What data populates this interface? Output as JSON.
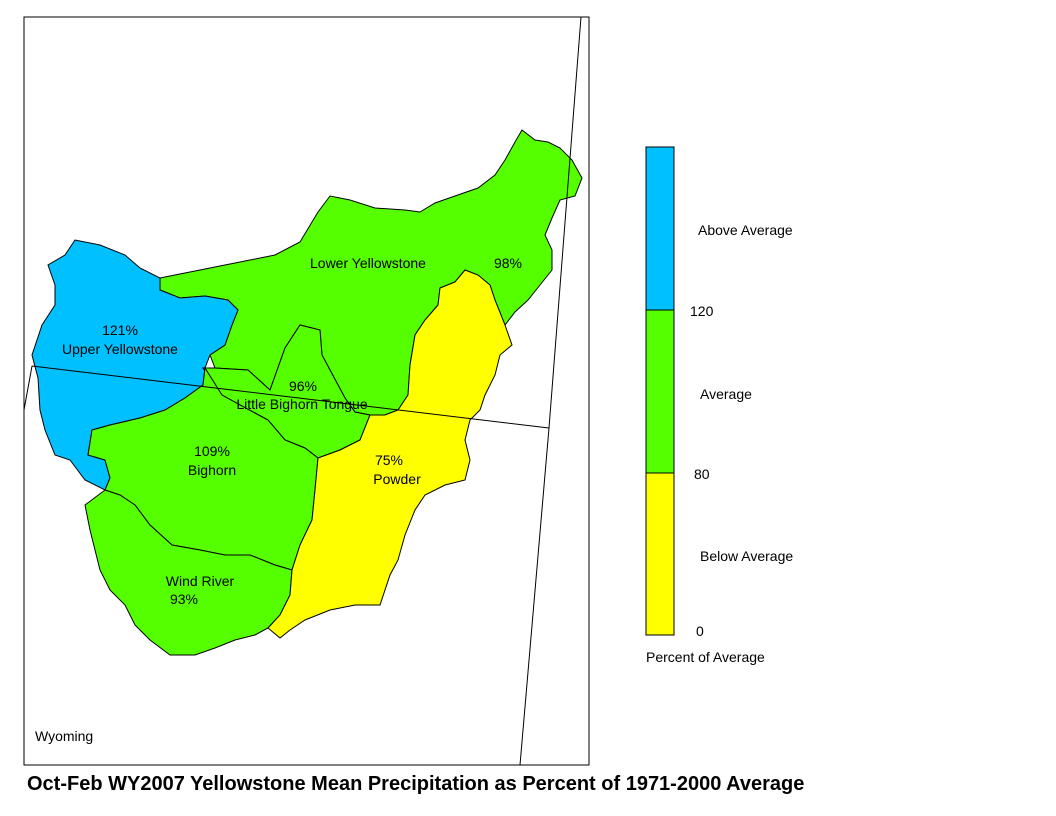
{
  "title": "Oct-Feb WY2007 Yellowstone Mean Precipitation as Percent of 1971-2000 Average",
  "state_label": "Wyoming",
  "colors": {
    "above": "#00c0ff",
    "average": "#55ff00",
    "below": "#ffff00"
  },
  "basins": [
    {
      "name": "Upper Yellowstone",
      "percent": "121%",
      "category": "above"
    },
    {
      "name": "Lower Yellowstone",
      "percent": "98%",
      "category": "average"
    },
    {
      "name": "Little Bighorn Tongue",
      "percent": "96%",
      "category": "average"
    },
    {
      "name": "Bighorn",
      "percent": "109%",
      "category": "average"
    },
    {
      "name": "Wind River",
      "percent": "93%",
      "category": "average"
    },
    {
      "name": "Powder",
      "percent": "75%",
      "category": "below"
    }
  ],
  "legend": {
    "title": "Percent of Average",
    "classes": [
      {
        "label": "Above Average",
        "color": "#00c0ff"
      },
      {
        "label": "Average",
        "color": "#55ff00"
      },
      {
        "label": "Below Average",
        "color": "#ffff00"
      }
    ],
    "breaks": [
      "120",
      "80",
      "0"
    ]
  }
}
